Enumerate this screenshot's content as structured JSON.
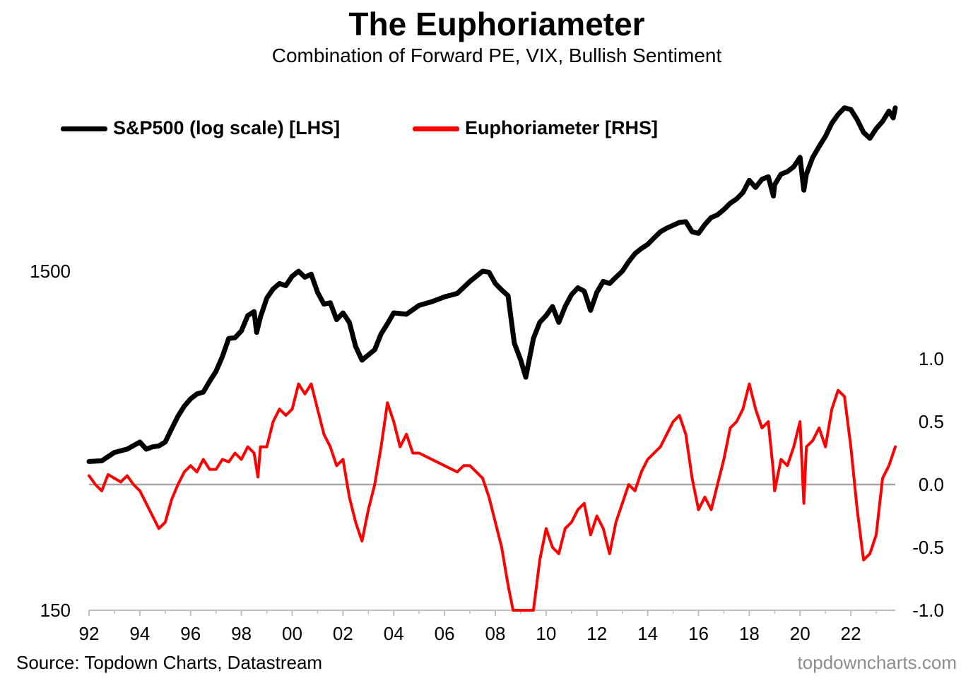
{
  "chart_data": {
    "type": "line",
    "title": "The Euphoriameter",
    "subtitle": "Combination of Forward PE, VIX, Bullish Sentiment",
    "source": "Source: Topdown Charts, Datastream",
    "watermark": "topdowncharts.com",
    "x_tick_labels": [
      "92",
      "94",
      "96",
      "98",
      "00",
      "02",
      "04",
      "06",
      "08",
      "10",
      "12",
      "14",
      "16",
      "18",
      "20",
      "22"
    ],
    "x_tick_years": [
      1992,
      1994,
      1996,
      1998,
      2000,
      2002,
      2004,
      2006,
      2008,
      2010,
      2012,
      2014,
      2016,
      2018,
      2020,
      2022
    ],
    "xlim": [
      1992.0,
      2023.75
    ],
    "y_left": {
      "scale": "log",
      "ylim": [
        150,
        6000
      ],
      "tick_values": [
        150,
        1500
      ],
      "tick_labels": [
        "150",
        "1500"
      ]
    },
    "y_right": {
      "scale": "linear",
      "ylim": [
        -1.0,
        1.0
      ],
      "tick_values": [
        -1.0,
        -0.5,
        0.0,
        0.5,
        1.0
      ],
      "tick_labels": [
        "-1.0",
        "-0.5",
        "0.0",
        "0.5",
        "1.0"
      ]
    },
    "zero_line": true,
    "legend_position": "top-left",
    "series": [
      {
        "name": "S&P500 (log scale) [LHS]",
        "axis": "left",
        "color": "#000000",
        "points": [
          [
            1992.0,
            412
          ],
          [
            1992.5,
            414
          ],
          [
            1993.0,
            438
          ],
          [
            1993.5,
            448
          ],
          [
            1994.0,
            470
          ],
          [
            1994.25,
            448
          ],
          [
            1994.5,
            455
          ],
          [
            1994.75,
            458
          ],
          [
            1995.0,
            470
          ],
          [
            1995.25,
            514
          ],
          [
            1995.5,
            560
          ],
          [
            1995.75,
            600
          ],
          [
            1996.0,
            630
          ],
          [
            1996.25,
            652
          ],
          [
            1996.5,
            660
          ],
          [
            1996.75,
            710
          ],
          [
            1997.0,
            760
          ],
          [
            1997.25,
            840
          ],
          [
            1997.5,
            950
          ],
          [
            1997.75,
            955
          ],
          [
            1998.0,
            1000
          ],
          [
            1998.25,
            1110
          ],
          [
            1998.5,
            1140
          ],
          [
            1998.6,
            990
          ],
          [
            1998.75,
            1100
          ],
          [
            1999.0,
            1250
          ],
          [
            1999.25,
            1330
          ],
          [
            1999.5,
            1380
          ],
          [
            1999.75,
            1360
          ],
          [
            2000.0,
            1450
          ],
          [
            2000.25,
            1500
          ],
          [
            2000.5,
            1440
          ],
          [
            2000.75,
            1470
          ],
          [
            2001.0,
            1300
          ],
          [
            2001.25,
            1200
          ],
          [
            2001.5,
            1210
          ],
          [
            2001.75,
            1080
          ],
          [
            2002.0,
            1130
          ],
          [
            2002.25,
            1060
          ],
          [
            2002.5,
            900
          ],
          [
            2002.75,
            820
          ],
          [
            2003.0,
            850
          ],
          [
            2003.25,
            880
          ],
          [
            2003.5,
            980
          ],
          [
            2003.75,
            1050
          ],
          [
            2004.0,
            1130
          ],
          [
            2004.5,
            1120
          ],
          [
            2005.0,
            1190
          ],
          [
            2005.5,
            1220
          ],
          [
            2006.0,
            1260
          ],
          [
            2006.5,
            1290
          ],
          [
            2007.0,
            1400
          ],
          [
            2007.5,
            1500
          ],
          [
            2007.75,
            1490
          ],
          [
            2008.0,
            1380
          ],
          [
            2008.25,
            1320
          ],
          [
            2008.5,
            1270
          ],
          [
            2008.75,
            920
          ],
          [
            2009.0,
            820
          ],
          [
            2009.2,
            730
          ],
          [
            2009.5,
            950
          ],
          [
            2009.75,
            1060
          ],
          [
            2010.0,
            1110
          ],
          [
            2010.25,
            1180
          ],
          [
            2010.5,
            1060
          ],
          [
            2010.75,
            1180
          ],
          [
            2011.0,
            1280
          ],
          [
            2011.25,
            1340
          ],
          [
            2011.5,
            1310
          ],
          [
            2011.75,
            1150
          ],
          [
            2012.0,
            1300
          ],
          [
            2012.25,
            1400
          ],
          [
            2012.5,
            1380
          ],
          [
            2012.75,
            1440
          ],
          [
            2013.0,
            1500
          ],
          [
            2013.25,
            1600
          ],
          [
            2013.5,
            1690
          ],
          [
            2013.75,
            1750
          ],
          [
            2014.0,
            1800
          ],
          [
            2014.25,
            1880
          ],
          [
            2014.5,
            1960
          ],
          [
            2014.75,
            2010
          ],
          [
            2015.0,
            2050
          ],
          [
            2015.25,
            2090
          ],
          [
            2015.5,
            2100
          ],
          [
            2015.75,
            1960
          ],
          [
            2016.0,
            1940
          ],
          [
            2016.25,
            2060
          ],
          [
            2016.5,
            2160
          ],
          [
            2016.75,
            2200
          ],
          [
            2017.0,
            2280
          ],
          [
            2017.25,
            2380
          ],
          [
            2017.5,
            2450
          ],
          [
            2017.75,
            2560
          ],
          [
            2018.0,
            2780
          ],
          [
            2018.25,
            2650
          ],
          [
            2018.5,
            2800
          ],
          [
            2018.75,
            2850
          ],
          [
            2018.95,
            2500
          ],
          [
            2019.0,
            2700
          ],
          [
            2019.25,
            2900
          ],
          [
            2019.5,
            2950
          ],
          [
            2019.75,
            3050
          ],
          [
            2020.0,
            3250
          ],
          [
            2020.15,
            2600
          ],
          [
            2020.25,
            2900
          ],
          [
            2020.5,
            3250
          ],
          [
            2020.75,
            3500
          ],
          [
            2021.0,
            3750
          ],
          [
            2021.25,
            4100
          ],
          [
            2021.5,
            4350
          ],
          [
            2021.75,
            4550
          ],
          [
            2022.0,
            4500
          ],
          [
            2022.25,
            4200
          ],
          [
            2022.5,
            3850
          ],
          [
            2022.75,
            3700
          ],
          [
            2023.0,
            3950
          ],
          [
            2023.25,
            4150
          ],
          [
            2023.5,
            4450
          ],
          [
            2023.67,
            4250
          ],
          [
            2023.75,
            4550
          ]
        ]
      },
      {
        "name": "Euphoriameter [RHS]",
        "axis": "right",
        "color": "#ff0000",
        "points": [
          [
            1992.0,
            0.07
          ],
          [
            1992.25,
            0.0
          ],
          [
            1992.5,
            -0.05
          ],
          [
            1992.75,
            0.08
          ],
          [
            1993.0,
            0.05
          ],
          [
            1993.25,
            0.02
          ],
          [
            1993.5,
            0.07
          ],
          [
            1993.75,
            0.0
          ],
          [
            1994.0,
            -0.05
          ],
          [
            1994.25,
            -0.15
          ],
          [
            1994.5,
            -0.25
          ],
          [
            1994.75,
            -0.35
          ],
          [
            1995.0,
            -0.3
          ],
          [
            1995.25,
            -0.12
          ],
          [
            1995.5,
            0.0
          ],
          [
            1995.75,
            0.1
          ],
          [
            1996.0,
            0.15
          ],
          [
            1996.25,
            0.1
          ],
          [
            1996.5,
            0.2
          ],
          [
            1996.75,
            0.12
          ],
          [
            1997.0,
            0.12
          ],
          [
            1997.25,
            0.2
          ],
          [
            1997.5,
            0.18
          ],
          [
            1997.75,
            0.25
          ],
          [
            1998.0,
            0.2
          ],
          [
            1998.25,
            0.3
          ],
          [
            1998.5,
            0.25
          ],
          [
            1998.65,
            0.06
          ],
          [
            1998.75,
            0.3
          ],
          [
            1999.0,
            0.3
          ],
          [
            1999.25,
            0.5
          ],
          [
            1999.5,
            0.6
          ],
          [
            1999.75,
            0.55
          ],
          [
            2000.0,
            0.6
          ],
          [
            2000.25,
            0.8
          ],
          [
            2000.5,
            0.72
          ],
          [
            2000.75,
            0.8
          ],
          [
            2001.0,
            0.6
          ],
          [
            2001.25,
            0.4
          ],
          [
            2001.5,
            0.3
          ],
          [
            2001.75,
            0.15
          ],
          [
            2002.0,
            0.2
          ],
          [
            2002.25,
            -0.1
          ],
          [
            2002.5,
            -0.3
          ],
          [
            2002.75,
            -0.45
          ],
          [
            2003.0,
            -0.2
          ],
          [
            2003.25,
            0.0
          ],
          [
            2003.5,
            0.3
          ],
          [
            2003.75,
            0.65
          ],
          [
            2004.0,
            0.5
          ],
          [
            2004.25,
            0.3
          ],
          [
            2004.5,
            0.4
          ],
          [
            2004.75,
            0.25
          ],
          [
            2005.0,
            0.25
          ],
          [
            2005.5,
            0.2
          ],
          [
            2006.0,
            0.15
          ],
          [
            2006.5,
            0.1
          ],
          [
            2006.75,
            0.15
          ],
          [
            2007.0,
            0.15
          ],
          [
            2007.5,
            0.05
          ],
          [
            2007.75,
            -0.1
          ],
          [
            2008.0,
            -0.3
          ],
          [
            2008.25,
            -0.5
          ],
          [
            2008.5,
            -0.8
          ],
          [
            2008.7,
            -1.0
          ],
          [
            2009.0,
            -1.0
          ],
          [
            2009.5,
            -1.0
          ],
          [
            2009.75,
            -0.6
          ],
          [
            2010.0,
            -0.35
          ],
          [
            2010.25,
            -0.5
          ],
          [
            2010.5,
            -0.55
          ],
          [
            2010.75,
            -0.35
          ],
          [
            2011.0,
            -0.3
          ],
          [
            2011.25,
            -0.2
          ],
          [
            2011.5,
            -0.15
          ],
          [
            2011.75,
            -0.4
          ],
          [
            2012.0,
            -0.25
          ],
          [
            2012.25,
            -0.35
          ],
          [
            2012.5,
            -0.55
          ],
          [
            2012.75,
            -0.3
          ],
          [
            2013.0,
            -0.15
          ],
          [
            2013.25,
            0.0
          ],
          [
            2013.5,
            -0.05
          ],
          [
            2013.75,
            0.1
          ],
          [
            2014.0,
            0.2
          ],
          [
            2014.25,
            0.25
          ],
          [
            2014.5,
            0.3
          ],
          [
            2014.75,
            0.4
          ],
          [
            2015.0,
            0.5
          ],
          [
            2015.25,
            0.55
          ],
          [
            2015.5,
            0.4
          ],
          [
            2015.75,
            0.05
          ],
          [
            2016.0,
            -0.2
          ],
          [
            2016.25,
            -0.1
          ],
          [
            2016.5,
            -0.2
          ],
          [
            2016.75,
            0.0
          ],
          [
            2017.0,
            0.2
          ],
          [
            2017.25,
            0.45
          ],
          [
            2017.5,
            0.5
          ],
          [
            2017.75,
            0.6
          ],
          [
            2018.0,
            0.8
          ],
          [
            2018.25,
            0.6
          ],
          [
            2018.5,
            0.45
          ],
          [
            2018.75,
            0.5
          ],
          [
            2018.95,
            0.1
          ],
          [
            2019.0,
            -0.05
          ],
          [
            2019.25,
            0.2
          ],
          [
            2019.5,
            0.15
          ],
          [
            2019.75,
            0.3
          ],
          [
            2020.0,
            0.5
          ],
          [
            2020.15,
            -0.15
          ],
          [
            2020.25,
            0.3
          ],
          [
            2020.5,
            0.35
          ],
          [
            2020.75,
            0.45
          ],
          [
            2021.0,
            0.3
          ],
          [
            2021.25,
            0.6
          ],
          [
            2021.5,
            0.75
          ],
          [
            2021.75,
            0.7
          ],
          [
            2022.0,
            0.3
          ],
          [
            2022.25,
            -0.2
          ],
          [
            2022.5,
            -0.6
          ],
          [
            2022.75,
            -0.55
          ],
          [
            2023.0,
            -0.4
          ],
          [
            2023.25,
            0.05
          ],
          [
            2023.5,
            0.15
          ],
          [
            2023.75,
            0.3
          ]
        ]
      }
    ]
  },
  "legend": {
    "items": [
      {
        "label": "S&P500 (log scale) [LHS]",
        "color": "#000000"
      },
      {
        "label": "Euphoriameter [RHS]",
        "color": "#ff0000"
      }
    ]
  }
}
